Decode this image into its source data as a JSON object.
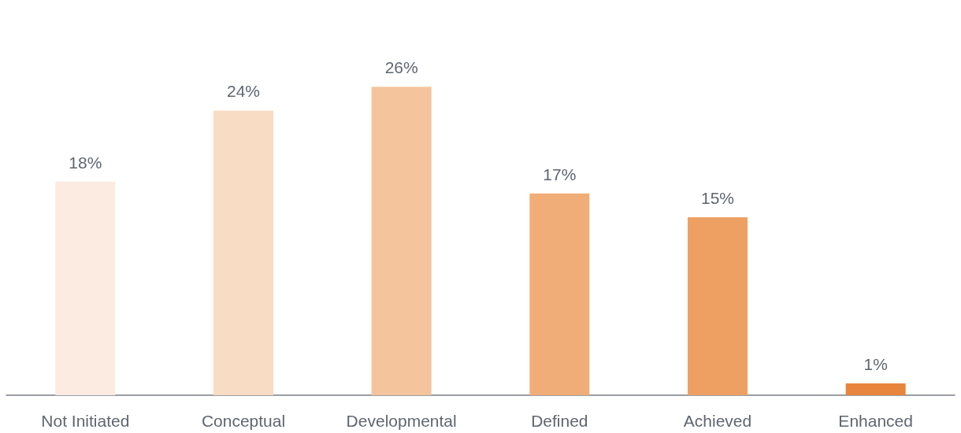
{
  "chart_data": {
    "type": "bar",
    "categories": [
      "Not Initiated",
      "Conceptual",
      "Developmental",
      "Defined",
      "Achieved",
      "Enhanced"
    ],
    "values": [
      18,
      24,
      26,
      17,
      15,
      1
    ],
    "colors": [
      "#fbebe0",
      "#f9dcc4",
      "#f4c49c",
      "#f0ad78",
      "#eda062",
      "#e8853c"
    ],
    "value_labels": [
      "18%",
      "24%",
      "26%",
      "17%",
      "15%",
      "1%"
    ],
    "grid": false
  }
}
